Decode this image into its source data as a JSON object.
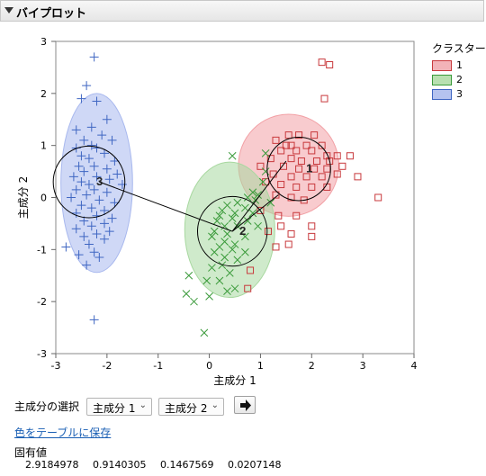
{
  "header": {
    "title": "バイプロット"
  },
  "chart_data": {
    "type": "scatter",
    "xlabel": "主成分 1",
    "ylabel": "主成分 2",
    "xlim": [
      -3,
      4
    ],
    "ylim": [
      -3,
      3
    ],
    "xticks": [
      "-3",
      "-2",
      "-1",
      "0",
      "1",
      "2",
      "3",
      "4"
    ],
    "yticks": [
      "-3",
      "-2",
      "-1",
      "0",
      "1",
      "2",
      "3"
    ],
    "grid": false,
    "legend_placement": "right",
    "series": [
      {
        "name": "1",
        "marker": "square",
        "color": "#c8393c",
        "fill": "#f2a0a5",
        "center": [
          1.75,
          0.55
        ],
        "ellipse": {
          "cx": 1.55,
          "cy": 0.62,
          "rx": 0.98,
          "ry": 0.98
        },
        "points": [
          [
            2.2,
            2.6
          ],
          [
            2.35,
            2.55
          ],
          [
            2.25,
            1.9
          ],
          [
            1.75,
            1.2
          ],
          [
            1.55,
            1.2
          ],
          [
            2.05,
            1.2
          ],
          [
            1.3,
            1.1
          ],
          [
            1.5,
            1.0
          ],
          [
            1.6,
            1.0
          ],
          [
            1.9,
            1.0
          ],
          [
            2.2,
            1.0
          ],
          [
            1.4,
            0.9
          ],
          [
            1.7,
            0.9
          ],
          [
            2.0,
            0.9
          ],
          [
            2.3,
            0.8
          ],
          [
            2.5,
            0.8
          ],
          [
            2.75,
            0.8
          ],
          [
            1.2,
            0.75
          ],
          [
            1.6,
            0.75
          ],
          [
            1.8,
            0.7
          ],
          [
            2.1,
            0.7
          ],
          [
            2.35,
            0.7
          ],
          [
            1.0,
            0.6
          ],
          [
            1.45,
            0.6
          ],
          [
            1.75,
            0.55
          ],
          [
            2.05,
            0.55
          ],
          [
            2.3,
            0.55
          ],
          [
            2.6,
            0.6
          ],
          [
            1.25,
            0.45
          ],
          [
            1.6,
            0.4
          ],
          [
            1.9,
            0.4
          ],
          [
            2.2,
            0.4
          ],
          [
            2.5,
            0.45
          ],
          [
            2.9,
            0.4
          ],
          [
            1.1,
            0.3
          ],
          [
            1.4,
            0.25
          ],
          [
            1.7,
            0.2
          ],
          [
            2.0,
            0.2
          ],
          [
            2.3,
            0.2
          ],
          [
            1.3,
            0.05
          ],
          [
            1.6,
            0.0
          ],
          [
            1.85,
            -0.05
          ],
          [
            3.3,
            0.0
          ],
          [
            1.0,
            -0.25
          ],
          [
            1.35,
            -0.35
          ],
          [
            1.7,
            -0.35
          ],
          [
            1.4,
            -0.55
          ],
          [
            2.0,
            -0.55
          ],
          [
            1.15,
            -0.65
          ],
          [
            1.6,
            -0.7
          ],
          [
            2.0,
            -0.75
          ],
          [
            1.55,
            -0.9
          ],
          [
            1.3,
            -0.95
          ],
          [
            0.8,
            -1.4
          ],
          [
            0.75,
            -1.75
          ]
        ]
      },
      {
        "name": "2",
        "marker": "x",
        "color": "#3a9a3a",
        "fill": "#a8d8a0",
        "center": [
          0.45,
          -0.65
        ],
        "ellipse": {
          "cx": 0.4,
          "cy": -0.62,
          "rx": 0.88,
          "ry": 1.3
        },
        "points": [
          [
            0.45,
            0.8
          ],
          [
            1.1,
            0.85
          ],
          [
            1.1,
            0.5
          ],
          [
            1.05,
            0.3
          ],
          [
            0.85,
            0.1
          ],
          [
            0.95,
            0.05
          ],
          [
            0.75,
            0.0
          ],
          [
            0.9,
            -0.05
          ],
          [
            1.2,
            -0.1
          ],
          [
            0.55,
            -0.1
          ],
          [
            0.35,
            -0.15
          ],
          [
            0.7,
            -0.2
          ],
          [
            0.25,
            -0.25
          ],
          [
            0.5,
            -0.3
          ],
          [
            0.85,
            -0.3
          ],
          [
            0.2,
            -0.35
          ],
          [
            0.45,
            -0.4
          ],
          [
            0.75,
            -0.45
          ],
          [
            0.15,
            -0.45
          ],
          [
            0.3,
            -0.55
          ],
          [
            0.55,
            -0.55
          ],
          [
            0.95,
            -0.55
          ],
          [
            0.1,
            -0.65
          ],
          [
            0.35,
            -0.7
          ],
          [
            0.7,
            -0.75
          ],
          [
            0.05,
            -0.75
          ],
          [
            0.3,
            -0.85
          ],
          [
            0.5,
            -0.9
          ],
          [
            0.2,
            -0.95
          ],
          [
            0.45,
            -1.0
          ],
          [
            0.7,
            -1.05
          ],
          [
            0.1,
            -1.05
          ],
          [
            0.3,
            -1.15
          ],
          [
            0.55,
            -1.2
          ],
          [
            0.25,
            -1.3
          ],
          [
            0.05,
            -1.35
          ],
          [
            0.4,
            -1.45
          ],
          [
            -0.4,
            -1.5
          ],
          [
            0.2,
            -1.6
          ],
          [
            -0.05,
            -1.6
          ],
          [
            0.5,
            -1.75
          ],
          [
            -0.45,
            -1.85
          ],
          [
            0.35,
            -1.8
          ],
          [
            -0.3,
            -2.0
          ],
          [
            0.0,
            -1.9
          ],
          [
            -0.1,
            -2.6
          ]
        ]
      },
      {
        "name": "3",
        "marker": "plus",
        "color": "#3f66c2",
        "fill": "#a8b8ee",
        "center": [
          -2.35,
          0.3
        ],
        "ellipse": {
          "cx": -2.2,
          "cy": 0.28,
          "rx": 0.7,
          "ry": 1.72
        },
        "points": [
          [
            -2.25,
            2.7
          ],
          [
            -2.4,
            2.15
          ],
          [
            -2.5,
            1.9
          ],
          [
            -2.2,
            1.85
          ],
          [
            -2.0,
            1.5
          ],
          [
            -2.6,
            1.3
          ],
          [
            -2.3,
            1.35
          ],
          [
            -2.1,
            1.2
          ],
          [
            -2.45,
            1.1
          ],
          [
            -1.9,
            1.1
          ],
          [
            -2.3,
            1.0
          ],
          [
            -2.6,
            0.95
          ],
          [
            -2.2,
            0.95
          ],
          [
            -2.05,
            0.85
          ],
          [
            -2.5,
            0.8
          ],
          [
            -2.35,
            0.75
          ],
          [
            -1.85,
            0.7
          ],
          [
            -2.55,
            0.6
          ],
          [
            -2.25,
            0.6
          ],
          [
            -2.0,
            0.55
          ],
          [
            -2.45,
            0.5
          ],
          [
            -1.8,
            0.45
          ],
          [
            -2.65,
            0.4
          ],
          [
            -2.2,
            0.4
          ],
          [
            -1.95,
            0.35
          ],
          [
            -2.5,
            0.3
          ],
          [
            -2.35,
            0.25
          ],
          [
            -1.7,
            0.25
          ],
          [
            -2.6,
            0.15
          ],
          [
            -2.25,
            0.15
          ],
          [
            -2.0,
            0.1
          ],
          [
            -2.4,
            0.05
          ],
          [
            -2.7,
            0.0
          ],
          [
            -2.15,
            -0.05
          ],
          [
            -1.85,
            -0.1
          ],
          [
            -2.5,
            -0.15
          ],
          [
            -2.3,
            -0.2
          ],
          [
            -2.05,
            -0.25
          ],
          [
            -2.6,
            -0.3
          ],
          [
            -2.2,
            -0.35
          ],
          [
            -1.9,
            -0.4
          ],
          [
            -2.45,
            -0.45
          ],
          [
            -2.05,
            -0.5
          ],
          [
            -2.3,
            -0.55
          ],
          [
            -2.6,
            -0.6
          ],
          [
            -1.95,
            -0.65
          ],
          [
            -2.2,
            -0.7
          ],
          [
            -2.45,
            -0.75
          ],
          [
            -2.05,
            -0.8
          ],
          [
            -2.8,
            -0.95
          ],
          [
            -2.35,
            -0.9
          ],
          [
            -2.25,
            -1.05
          ],
          [
            -2.55,
            -1.1
          ],
          [
            -2.15,
            -1.15
          ],
          [
            -2.4,
            -1.3
          ],
          [
            -2.25,
            -2.35
          ]
        ]
      }
    ]
  },
  "legend": {
    "title": "クラスター",
    "items": [
      {
        "label": "1",
        "fill": "#f2b3b8",
        "border": "#c8393c"
      },
      {
        "label": "2",
        "fill": "#b8e0b0",
        "border": "#3a9a3a"
      },
      {
        "label": "3",
        "fill": "#b5c3ef",
        "border": "#3f66c2"
      }
    ]
  },
  "controls": {
    "selection_label": "主成分の選択",
    "x_select": "主成分 1",
    "y_select": "主成分 2",
    "save_link": "色をテーブルに保存"
  },
  "eigen": {
    "title": "固有値",
    "values": [
      "2.9184978",
      "0.9140305",
      "0.1467569",
      "0.0207148"
    ]
  }
}
